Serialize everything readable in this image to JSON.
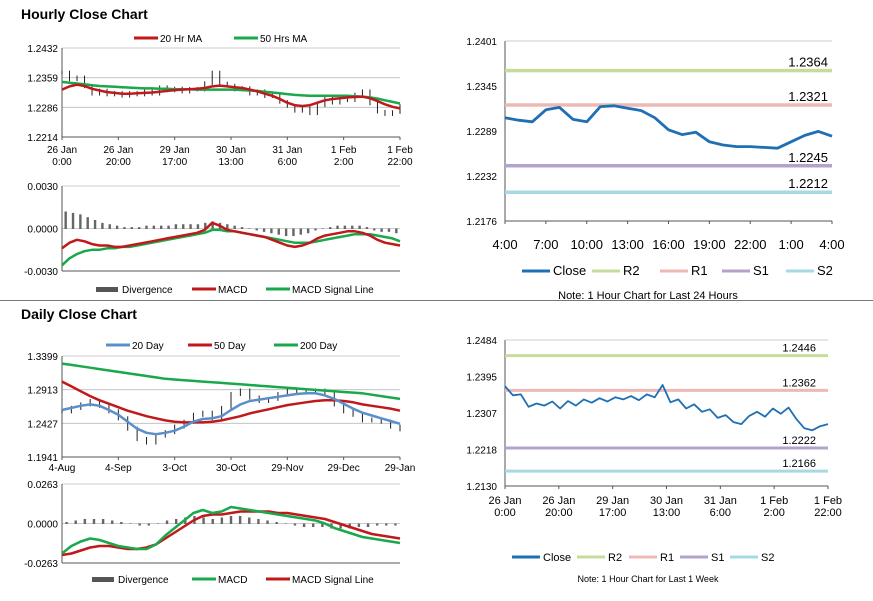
{
  "titles": {
    "hourly": "Hourly Close Chart",
    "daily": "Daily Close Chart"
  },
  "colors": {
    "red": "#c0181b",
    "green": "#19a84b",
    "blue": "#1f6fb4",
    "lightblue": "#5b8fc9",
    "r2": "#c5dc9b",
    "r1": "#eeb9b5",
    "s1": "#b3a3cc",
    "s2": "#a8d9e3",
    "divergence": "#666666"
  },
  "chart_data": [
    {
      "id": "hourly_price",
      "type": "line",
      "legend": [
        "20 Hr MA",
        "50 Hrs MA"
      ],
      "ylim": [
        1.2214,
        1.2432
      ],
      "yticks": [
        "1.2432",
        "1.2359",
        "1.2286",
        "1.2214"
      ],
      "xticks": [
        [
          "26 Jan",
          "0:00"
        ],
        [
          "26 Jan",
          "20:00"
        ],
        [
          "29 Jan",
          "17:00"
        ],
        [
          "30 Jan",
          "13:00"
        ],
        [
          "31 Jan",
          "6:00"
        ],
        [
          "1 Feb",
          "2:00"
        ],
        [
          "1 Feb",
          "22:00"
        ]
      ],
      "series": [
        {
          "name": "Close",
          "values": [
            1.2372,
            1.2355,
            1.236,
            1.2338,
            1.232,
            1.2328,
            1.2318,
            1.2322,
            1.2315,
            1.2322,
            1.2318,
            1.2328,
            1.232,
            1.2336,
            1.2328,
            1.2333,
            1.2325,
            1.2332,
            1.233,
            1.2346,
            1.2372,
            1.2345,
            1.234,
            1.233,
            1.2334,
            1.232,
            1.2326,
            1.2314,
            1.2318,
            1.23,
            1.229,
            1.2278,
            1.2284,
            1.2272,
            1.2292,
            1.2308,
            1.2298,
            1.2312,
            1.2304,
            1.2318,
            1.2326,
            1.2296,
            1.2276,
            1.227,
            1.2275,
            1.229
          ]
        },
        {
          "name": "20 Hr MA",
          "values": [
            1.233,
            1.2338,
            1.2342,
            1.2339,
            1.2332,
            1.2328,
            1.2324,
            1.2322,
            1.232,
            1.232,
            1.2321,
            1.2322,
            1.2323,
            1.2325,
            1.2327,
            1.2329,
            1.233,
            1.2331,
            1.2332,
            1.2334,
            1.2338,
            1.234,
            1.2338,
            1.2336,
            1.2334,
            1.233,
            1.2326,
            1.232,
            1.2315,
            1.2307,
            1.2298,
            1.2292,
            1.229,
            1.2292,
            1.2298,
            1.2304,
            1.2307,
            1.2309,
            1.2311,
            1.2312,
            1.2313,
            1.2309,
            1.2302,
            1.2294,
            1.2288,
            1.2284
          ]
        },
        {
          "name": "50 Hrs MA",
          "values": [
            1.2349,
            1.2347,
            1.2345,
            1.2343,
            1.2341,
            1.2339,
            1.2338,
            1.2337,
            1.2336,
            1.2335,
            1.2334,
            1.2333,
            1.2333,
            1.2332,
            1.2332,
            1.2331,
            1.2331,
            1.2331,
            1.233,
            1.233,
            1.233,
            1.233,
            1.233,
            1.233,
            1.2329,
            1.2328,
            1.2327,
            1.2325,
            1.2323,
            1.2321,
            1.2319,
            1.2317,
            1.2316,
            1.2315,
            1.2315,
            1.2315,
            1.2315,
            1.2315,
            1.2315,
            1.2314,
            1.2313,
            1.2311,
            1.2308,
            1.2304,
            1.23,
            1.2296
          ]
        }
      ]
    },
    {
      "id": "hourly_macd",
      "type": "bar",
      "legend": [
        "Divergence",
        "MACD",
        "MACD Signal Line"
      ],
      "ylim": [
        -0.003,
        0.003
      ],
      "yticks": [
        "0.0030",
        "0.0000",
        "-0.0030"
      ],
      "series": [
        {
          "name": "Divergence",
          "values": [
            0.0012,
            0.0011,
            0.001,
            0.0008,
            0.0006,
            0.0004,
            0.0003,
            0.0002,
            0.0001,
            0.0001,
            0.0001,
            0.0002,
            0.0002,
            0.0002,
            0.0002,
            0.0003,
            0.0003,
            0.0003,
            0.0003,
            0.0004,
            0.0005,
            0.0004,
            0.0003,
            0.0002,
            0.0001,
            0.0,
            -0.0001,
            -0.0002,
            -0.0003,
            -0.0004,
            -0.0005,
            -0.0005,
            -0.0004,
            -0.0003,
            -0.0001,
            0.0,
            0.0001,
            0.0002,
            0.0002,
            0.0002,
            0.0002,
            0.0001,
            -0.0001,
            -0.0002,
            -0.0002,
            -0.0003
          ]
        },
        {
          "name": "MACD",
          "values": [
            -0.0014,
            -0.001,
            -0.0008,
            -0.0009,
            -0.0011,
            -0.0012,
            -0.0012,
            -0.0013,
            -0.0013,
            -0.0012,
            -0.0011,
            -0.001,
            -0.0009,
            -0.0008,
            -0.0007,
            -0.0006,
            -0.0005,
            -0.0004,
            -0.0003,
            -0.0001,
            0.0004,
            0.0002,
            -0.0001,
            -0.0002,
            -0.0003,
            -0.0004,
            -0.0005,
            -0.0006,
            -0.0008,
            -0.001,
            -0.0012,
            -0.0013,
            -0.0012,
            -0.001,
            -0.0007,
            -0.0005,
            -0.0004,
            -0.0003,
            -0.0002,
            -0.0002,
            -0.0003,
            -0.0005,
            -0.0008,
            -0.001,
            -0.0011,
            -0.0012
          ]
        },
        {
          "name": "MACD Signal Line",
          "values": [
            -0.0026,
            -0.0021,
            -0.0018,
            -0.0016,
            -0.0015,
            -0.0015,
            -0.0014,
            -0.0014,
            -0.0013,
            -0.0013,
            -0.0012,
            -0.0011,
            -0.001,
            -0.0009,
            -0.0008,
            -0.0007,
            -0.0006,
            -0.0005,
            -0.0004,
            -0.0003,
            -0.0001,
            -0.0001,
            -0.0002,
            -0.0002,
            -0.0003,
            -0.0004,
            -0.0005,
            -0.0006,
            -0.0007,
            -0.0008,
            -0.0009,
            -0.001,
            -0.001,
            -0.001,
            -0.0009,
            -0.0008,
            -0.0007,
            -0.0006,
            -0.0005,
            -0.0004,
            -0.0004,
            -0.0004,
            -0.0005,
            -0.0006,
            -0.0007,
            -0.0009
          ]
        }
      ]
    },
    {
      "id": "hourly_sr",
      "type": "line",
      "ylim": [
        1.2176,
        1.2401
      ],
      "yticks": [
        "1.2401",
        "1.2345",
        "1.2289",
        "1.2232",
        "1.2176"
      ],
      "xticks": [
        "4:00",
        "7:00",
        "10:00",
        "13:00",
        "16:00",
        "19:00",
        "22:00",
        "1:00",
        "4:00"
      ],
      "legend": [
        "Close",
        "R2",
        "R1",
        "S1",
        "S2"
      ],
      "levels": [
        {
          "name": "R2",
          "value": 1.2364,
          "label": "1.2364"
        },
        {
          "name": "R1",
          "value": 1.2321,
          "label": "1.2321"
        },
        {
          "name": "S1",
          "value": 1.2245,
          "label": "1.2245"
        },
        {
          "name": "S2",
          "value": 1.2212,
          "label": "1.2212"
        }
      ],
      "series": [
        {
          "name": "Close",
          "values": [
            1.2305,
            1.2302,
            1.23,
            1.2315,
            1.2318,
            1.2303,
            1.23,
            1.2319,
            1.232,
            1.2317,
            1.2314,
            1.2305,
            1.229,
            1.2284,
            1.2287,
            1.2275,
            1.2271,
            1.2269,
            1.2269,
            1.2268,
            1.2267,
            1.2275,
            1.2283,
            1.2288,
            1.2282
          ]
        }
      ],
      "note": "Note: 1 Hour Chart for Last 24 Hours"
    },
    {
      "id": "daily_price",
      "type": "line",
      "legend": [
        "20 Day",
        "50 Day",
        "200 Day"
      ],
      "ylim": [
        1.1941,
        1.3399
      ],
      "yticks": [
        "1.3399",
        "1.2913",
        "1.2427",
        "1.1941"
      ],
      "xticks": [
        "4-Aug",
        "4-Sep",
        "3-Oct",
        "30-Oct",
        "29-Nov",
        "29-Dec",
        "29-Jan"
      ],
      "series": [
        {
          "name": "Close",
          "values": [
            1.26,
            1.265,
            1.27,
            1.275,
            1.268,
            1.26,
            1.25,
            1.235,
            1.22,
            1.215,
            1.225,
            1.23,
            1.238,
            1.245,
            1.255,
            1.258,
            1.25,
            1.265,
            1.285,
            1.29,
            1.28,
            1.275,
            1.278,
            1.285,
            1.29,
            1.287,
            1.288,
            1.29,
            1.285,
            1.27,
            1.26,
            1.255,
            1.247,
            1.248,
            1.245,
            1.238,
            1.234
          ]
        },
        {
          "name": "20 Day",
          "values": [
            1.262,
            1.265,
            1.268,
            1.27,
            1.268,
            1.262,
            1.255,
            1.245,
            1.235,
            1.229,
            1.227,
            1.229,
            1.232,
            1.238,
            1.245,
            1.249,
            1.25,
            1.253,
            1.262,
            1.27,
            1.275,
            1.277,
            1.279,
            1.281,
            1.283,
            1.285,
            1.286,
            1.286,
            1.283,
            1.278,
            1.271,
            1.264,
            1.258,
            1.254,
            1.25,
            1.246,
            1.242
          ]
        },
        {
          "name": "50 Day",
          "values": [
            1.303,
            1.296,
            1.289,
            1.282,
            1.276,
            1.271,
            1.266,
            1.261,
            1.257,
            1.253,
            1.25,
            1.247,
            1.245,
            1.244,
            1.244,
            1.244,
            1.245,
            1.247,
            1.25,
            1.253,
            1.257,
            1.26,
            1.263,
            1.266,
            1.269,
            1.271,
            1.273,
            1.275,
            1.276,
            1.276,
            1.275,
            1.273,
            1.27,
            1.268,
            1.266,
            1.264,
            1.261
          ]
        },
        {
          "name": "200 Day",
          "values": [
            1.329,
            1.327,
            1.325,
            1.323,
            1.321,
            1.319,
            1.317,
            1.315,
            1.313,
            1.311,
            1.309,
            1.307,
            1.306,
            1.305,
            1.304,
            1.303,
            1.302,
            1.301,
            1.3,
            1.299,
            1.298,
            1.297,
            1.296,
            1.295,
            1.294,
            1.293,
            1.292,
            1.291,
            1.29,
            1.289,
            1.288,
            1.287,
            1.286,
            1.284,
            1.282,
            1.28,
            1.278
          ]
        }
      ]
    },
    {
      "id": "daily_macd",
      "type": "bar",
      "legend": [
        "Divergence",
        "MACD",
        "MACD Signal Line"
      ],
      "ylim": [
        -0.0263,
        0.0263
      ],
      "yticks": [
        "0.0263",
        "0.0000",
        "-0.0263"
      ],
      "series": [
        {
          "name": "Divergence",
          "values": [
            0.001,
            0.002,
            0.003,
            0.003,
            0.003,
            0.002,
            0.001,
            0.0,
            -0.001,
            -0.001,
            0.0,
            0.002,
            0.003,
            0.004,
            0.005,
            0.004,
            0.003,
            0.004,
            0.005,
            0.005,
            0.004,
            0.003,
            0.002,
            0.001,
            0.0,
            -0.001,
            -0.002,
            -0.002,
            -0.002,
            -0.003,
            -0.003,
            -0.003,
            -0.002,
            -0.002,
            -0.001,
            -0.001,
            -0.001
          ]
        },
        {
          "name": "MACD",
          "values": [
            -0.02,
            -0.015,
            -0.012,
            -0.01,
            -0.011,
            -0.013,
            -0.015,
            -0.016,
            -0.017,
            -0.017,
            -0.014,
            -0.008,
            -0.003,
            0.002,
            0.007,
            0.009,
            0.007,
            0.008,
            0.011,
            0.01,
            0.009,
            0.008,
            0.007,
            0.006,
            0.005,
            0.004,
            0.003,
            0.002,
            0.0,
            -0.003,
            -0.005,
            -0.007,
            -0.009,
            -0.01,
            -0.011,
            -0.012,
            -0.013
          ]
        },
        {
          "name": "MACD Signal Line",
          "values": [
            -0.021,
            -0.02,
            -0.018,
            -0.016,
            -0.015,
            -0.015,
            -0.016,
            -0.017,
            -0.017,
            -0.016,
            -0.014,
            -0.01,
            -0.006,
            -0.002,
            0.002,
            0.005,
            0.006,
            0.006,
            0.007,
            0.008,
            0.008,
            0.008,
            0.008,
            0.007,
            0.007,
            0.006,
            0.005,
            0.004,
            0.003,
            0.001,
            -0.001,
            -0.003,
            -0.005,
            -0.007,
            -0.008,
            -0.009,
            -0.01
          ]
        }
      ]
    },
    {
      "id": "daily_sr",
      "type": "line",
      "ylim": [
        1.213,
        1.2484
      ],
      "yticks": [
        "1.2484",
        "1.2395",
        "1.2307",
        "1.2218",
        "1.2130"
      ],
      "xticks": [
        [
          "26 Jan",
          "0:00"
        ],
        [
          "26 Jan",
          "20:00"
        ],
        [
          "29 Jan",
          "17:00"
        ],
        [
          "30 Jan",
          "13:00"
        ],
        [
          "31 Jan",
          "6:00"
        ],
        [
          "1 Feb",
          "2:00"
        ],
        [
          "1 Feb",
          "22:00"
        ]
      ],
      "legend": [
        "Close",
        "R2",
        "R1",
        "S1",
        "S2"
      ],
      "levels": [
        {
          "name": "R2",
          "value": 1.2446,
          "label": "1.2446"
        },
        {
          "name": "R1",
          "value": 1.2362,
          "label": "1.2362"
        },
        {
          "name": "S1",
          "value": 1.2222,
          "label": "1.2222"
        },
        {
          "name": "S2",
          "value": 1.2166,
          "label": "1.2166"
        }
      ],
      "series": [
        {
          "name": "Close",
          "values": [
            1.2372,
            1.235,
            1.2352,
            1.2322,
            1.233,
            1.2325,
            1.2335,
            1.2318,
            1.2336,
            1.2325,
            1.234,
            1.2332,
            1.2343,
            1.2335,
            1.2345,
            1.234,
            1.2348,
            1.2338,
            1.2352,
            1.2345,
            1.2375,
            1.2333,
            1.234,
            1.2318,
            1.2328,
            1.231,
            1.2316,
            1.2295,
            1.2302,
            1.2285,
            1.228,
            1.23,
            1.231,
            1.2298,
            1.2318,
            1.2305,
            1.232,
            1.2292,
            1.227,
            1.2265,
            1.2275,
            1.228
          ]
        }
      ],
      "note": "Note: 1 Hour Chart for Last 1 Week"
    }
  ]
}
